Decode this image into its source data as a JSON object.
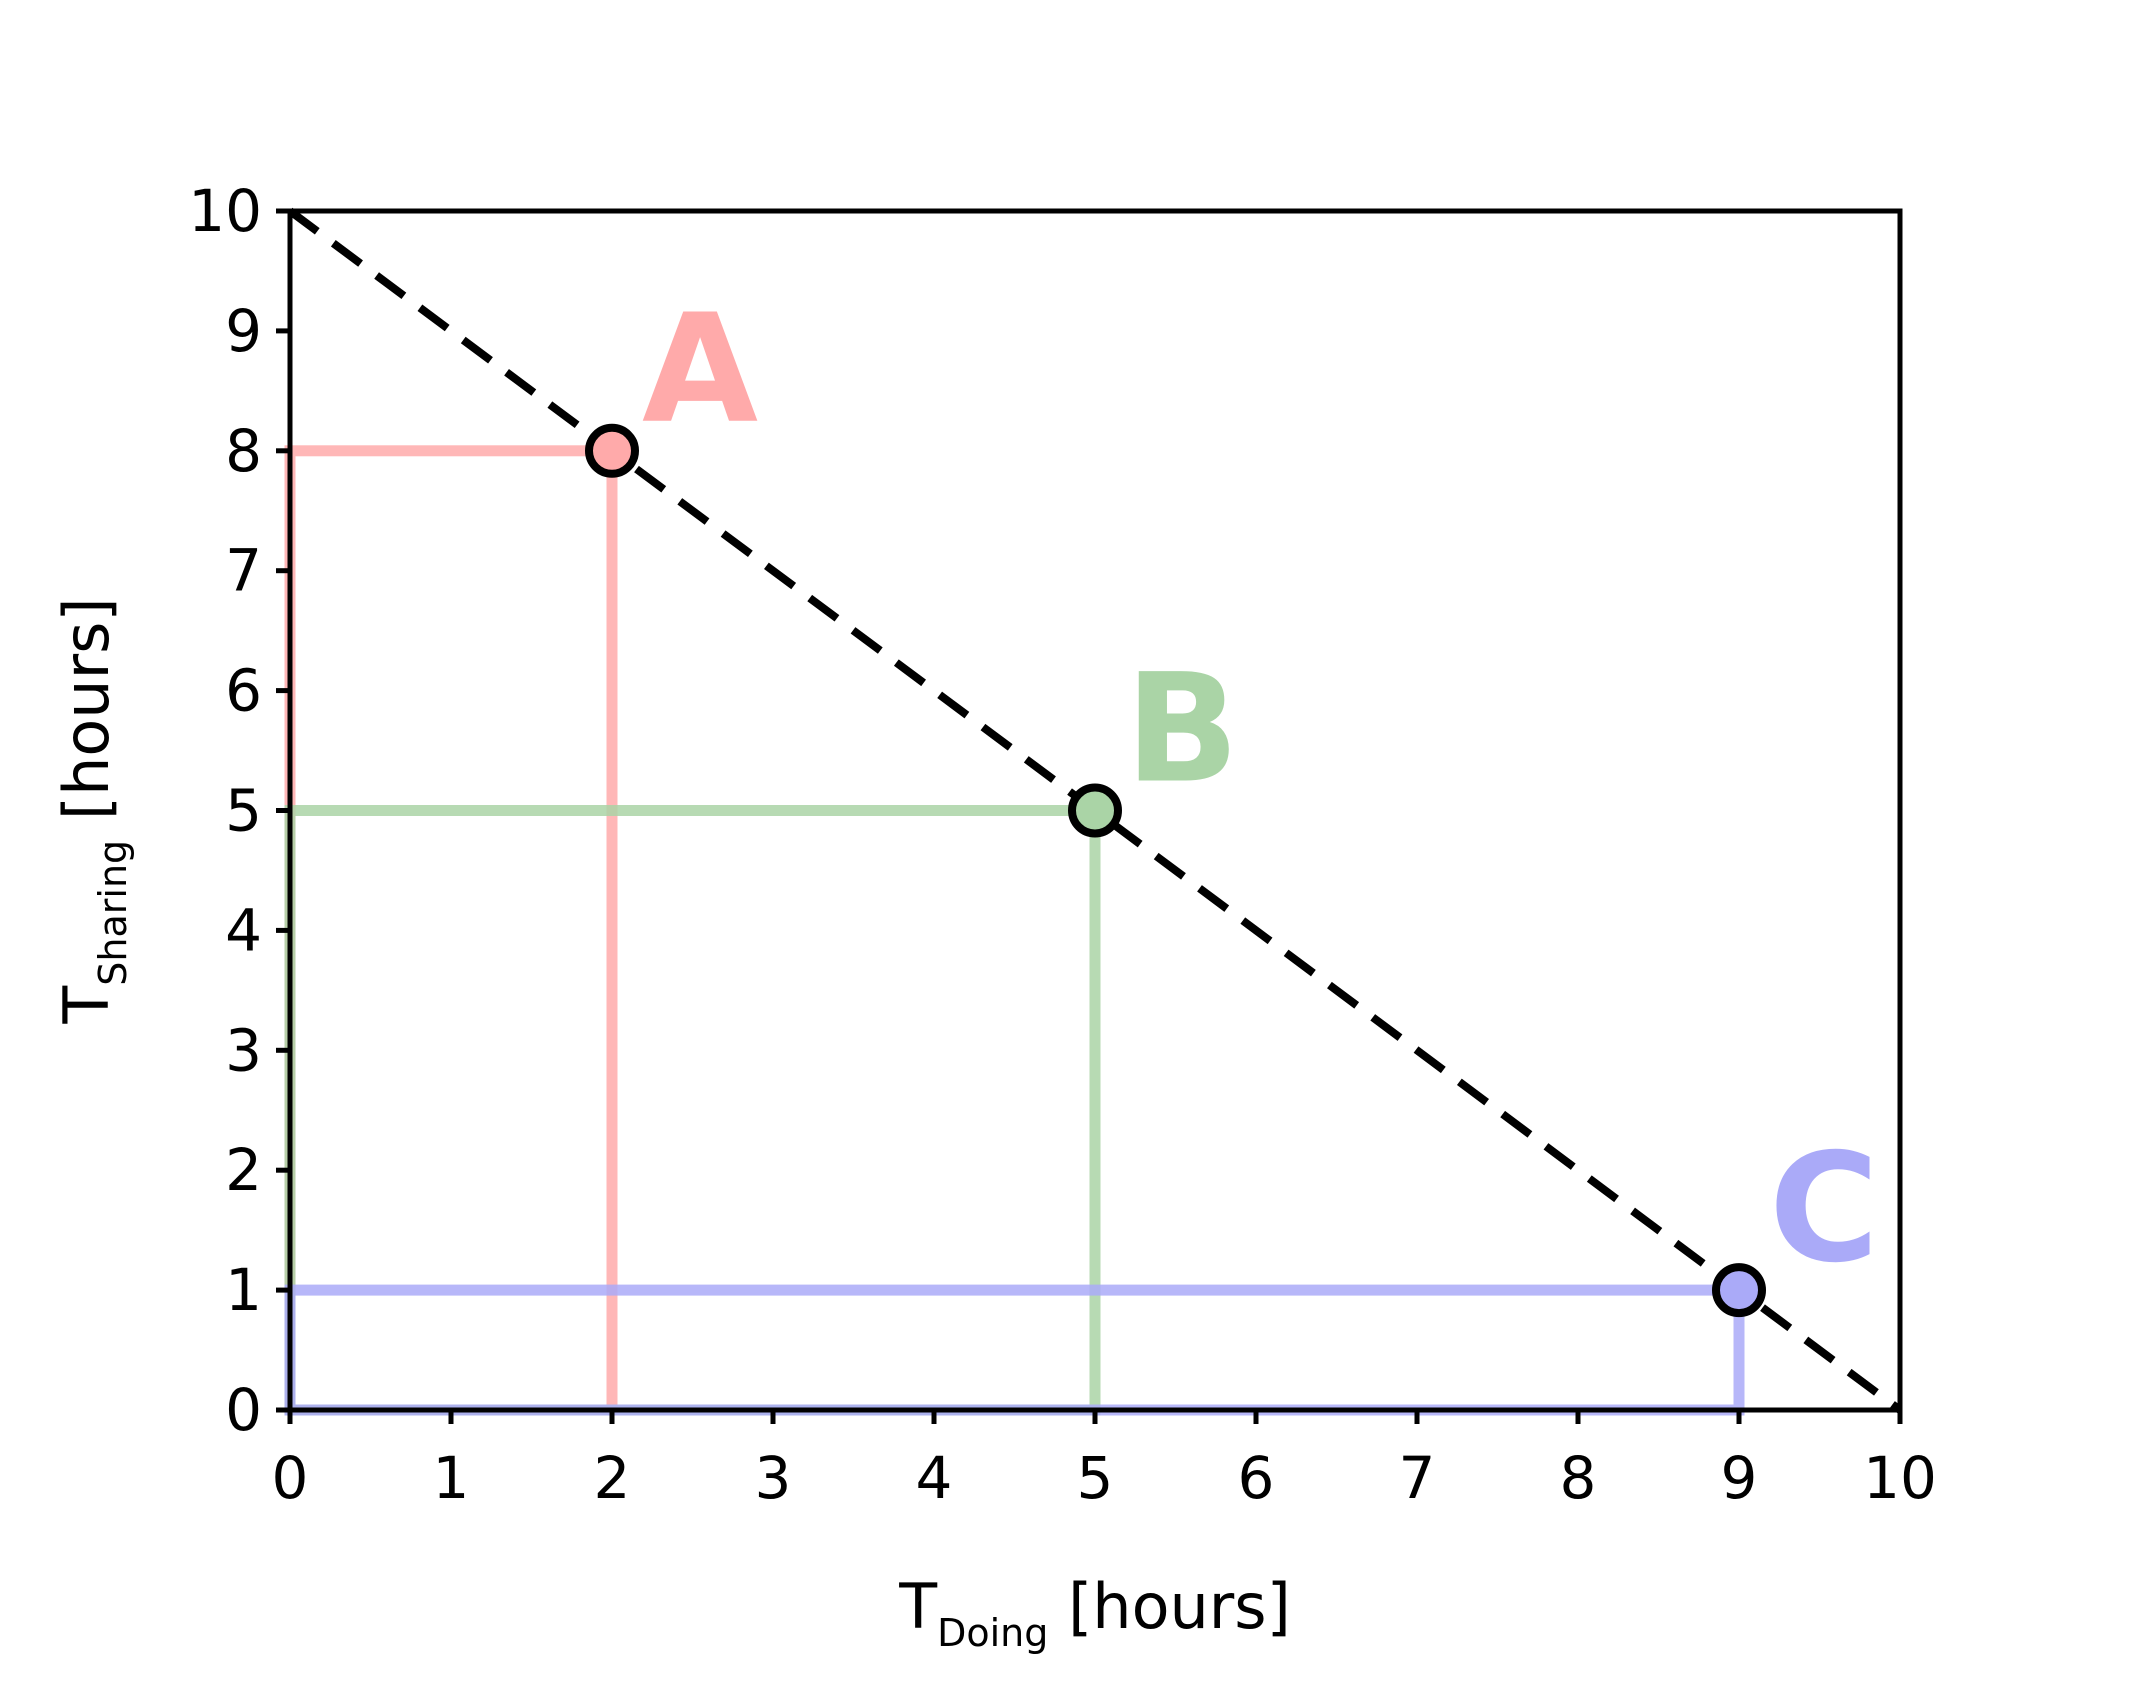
{
  "chart_data": {
    "type": "line",
    "xlabel": {
      "main": "T",
      "sub": "Doing",
      "unit": " [hours]"
    },
    "ylabel": {
      "main": "T",
      "sub": "Sharing",
      "unit": " [hours]"
    },
    "xlim": [
      0,
      10
    ],
    "ylim": [
      0,
      10
    ],
    "xticks": [
      "0",
      "1",
      "2",
      "3",
      "4",
      "5",
      "6",
      "7",
      "8",
      "9",
      "10"
    ],
    "yticks": [
      "0",
      "1",
      "2",
      "3",
      "4",
      "5",
      "6",
      "7",
      "8",
      "9",
      "10"
    ],
    "grid": false,
    "series": [
      {
        "x": [
          0,
          10
        ],
        "y": [
          10,
          0
        ],
        "style": "dashed",
        "color": "#000000"
      }
    ],
    "points": [
      {
        "label": "A",
        "x": 2,
        "y": 8,
        "color": "#ffaaaa"
      },
      {
        "label": "B",
        "x": 5,
        "y": 5,
        "color": "#aad4a6"
      },
      {
        "label": "C",
        "x": 9,
        "y": 1,
        "color": "#aaaaf8"
      }
    ]
  }
}
